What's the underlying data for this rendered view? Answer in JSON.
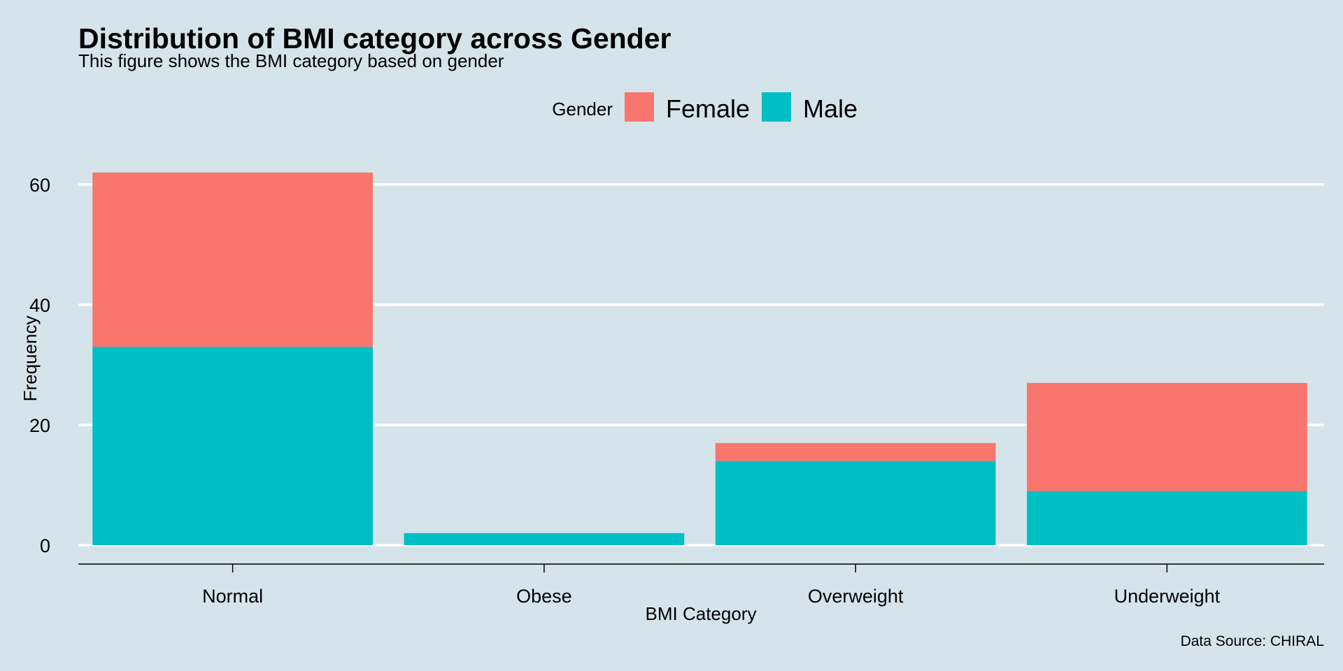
{
  "chart_data": {
    "type": "bar",
    "stacked": true,
    "title": "Distribution of BMI category across Gender",
    "subtitle": "This figure shows the BMI category based on gender",
    "xlabel": "BMI Category",
    "ylabel": "Frequency",
    "caption": "Data Source: CHIRAL",
    "legend_title": "Gender",
    "legend_position": "top",
    "categories": [
      "Normal",
      "Obese",
      "Overweight",
      "Underweight"
    ],
    "series": [
      {
        "name": "Male",
        "color": "#00bfc4",
        "values": [
          33,
          2,
          14,
          9
        ]
      },
      {
        "name": "Female",
        "color": "#f8766d",
        "values": [
          29,
          0,
          3,
          18
        ]
      }
    ],
    "legend_order": [
      "Female",
      "Male"
    ],
    "ylim": [
      0,
      63
    ],
    "yticks": [
      0,
      20,
      40,
      60
    ],
    "grid": true,
    "gridline_color": "#ffffff",
    "background_color": "#d5e4eb"
  }
}
